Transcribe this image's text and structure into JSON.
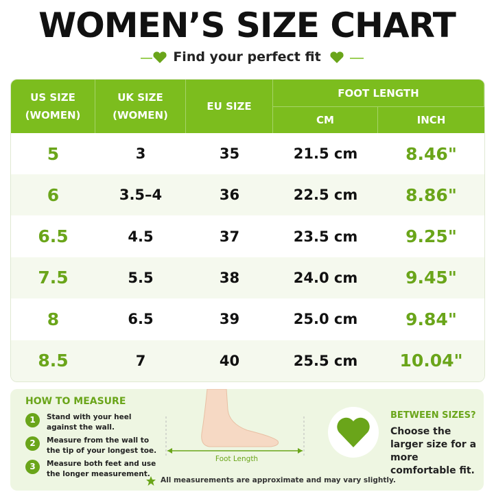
{
  "header": {
    "title": "WOMEN’S SIZE CHART",
    "subtitle": "Find your perfect fit"
  },
  "table": {
    "headers": {
      "us_size": [
        "US SIZE",
        "(WOMEN)"
      ],
      "uk_size": [
        "UK SIZE",
        "(WOMEN)"
      ],
      "eu_size": "EU SIZE",
      "foot_length": "FOOT LENGTH",
      "cm": "CM",
      "inch": "INCH"
    },
    "rows": [
      [
        "5",
        "3",
        "35",
        "21.5 cm",
        "8.46\""
      ],
      [
        "6",
        "3.5–4",
        "36",
        "22.5 cm",
        "8.86\""
      ],
      [
        "6.5",
        "4.5",
        "37",
        "23.5 cm",
        "9.25\""
      ],
      [
        "7.5",
        "5.5",
        "38",
        "24.0 cm",
        "9.45\""
      ],
      [
        "8",
        "6.5",
        "39",
        "25.0 cm",
        "9.84\""
      ],
      [
        "8.5",
        "7",
        "40",
        "25.5 cm",
        "10.04\""
      ]
    ]
  },
  "how_to_measure": {
    "title": "HOW TO MEASURE",
    "steps": [
      {
        "number": "1",
        "text": "Stand with your heel against the wall."
      },
      {
        "number": "2",
        "text": "Measure from the wall to the tip of your longest toe."
      },
      {
        "number": "3",
        "text": "Measure both feet and use the longer measurement."
      }
    ],
    "diagram_label": "Foot Length"
  },
  "between_sizes": {
    "title": "BETWEEN SIZES?",
    "text": "Choose the larger size for a more comfortable fit."
  },
  "footnote": "All measurements are approximate and may vary slightly."
}
